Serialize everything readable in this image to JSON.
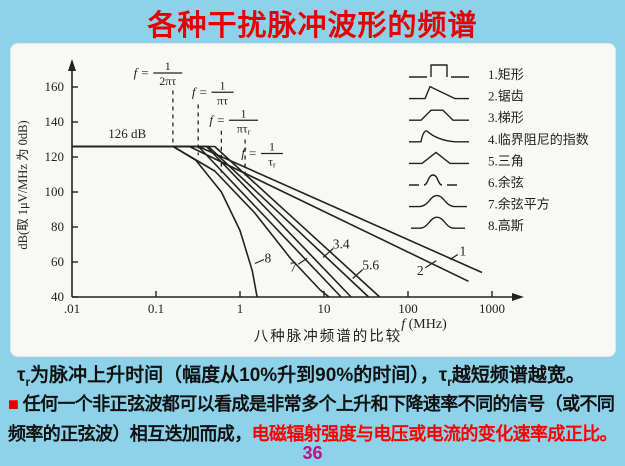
{
  "page": {
    "title": "各种干扰脉冲波形的频谱",
    "title_color": "#e60000",
    "background_color": "#8ed2e9",
    "page_number": "36",
    "page_number_color": "#c0108c"
  },
  "notes": {
    "line1": [
      {
        "t": "τ"
      },
      {
        "t": "r",
        "sub": true
      },
      {
        "t": "为脉冲上升时间（幅度从10%升到90%的时间），"
      },
      {
        "t": "τ"
      },
      {
        "t": "r",
        "sub": true
      },
      {
        "t": "越短频谱越宽。"
      }
    ],
    "line2": [
      {
        "t": "■ ",
        "color": "#e60000"
      },
      {
        "t": "任何一个非正弦波都可以看成是非常多个上升和下降速率不同的信号（或不同"
      }
    ],
    "line3": [
      {
        "t": "频率的正弦波）相互迭加而成，"
      },
      {
        "t": "电磁辐射强度与电压或电流的变化速率成正比。",
        "color": "#ff0000"
      }
    ]
  },
  "chart_data": {
    "type": "line",
    "caption": "八种脉冲频谱的比较",
    "xlabel_f": "f",
    "xlabel_unit": "(MHz)",
    "ylabel": "dB(取 1μV/MHz 为 0dB)",
    "x_scale": "log",
    "xlim": [
      0.01,
      1000
    ],
    "ylim": [
      40,
      160
    ],
    "x_ticks": [
      {
        "v": 0.01,
        "label": ".01"
      },
      {
        "v": 0.1,
        "label": "0.1"
      },
      {
        "v": 1,
        "label": "1"
      },
      {
        "v": 10,
        "label": "10"
      },
      {
        "v": 100,
        "label": "100"
      },
      {
        "v": 1000,
        "label": "1000"
      }
    ],
    "y_ticks": [
      40,
      60,
      80,
      100,
      120,
      140,
      160
    ],
    "plateau": {
      "dB": 126,
      "label": "126 dB",
      "label_f": 0.027,
      "label_dB": 131
    },
    "break_markers": [
      {
        "f": 0.159,
        "dash_top_dB": 158,
        "dash_bottom_dB": 126,
        "num": "1",
        "den": "2πτ",
        "label_f": 0.138,
        "label_dB": 168
      },
      {
        "f": 0.318,
        "dash_top_dB": 150,
        "dash_bottom_dB": 121,
        "num": "1",
        "den": "πτ",
        "label_f": 0.62,
        "label_dB": 157
      },
      {
        "f": 0.6,
        "dash_top_dB": 135,
        "dash_bottom_dB": 111,
        "num": "1",
        "den": "πτ_r",
        "label_f": 1.1,
        "label_dB": 141
      },
      {
        "f": 1.15,
        "dash_top_dB": 130,
        "dash_bottom_dB": 107,
        "num": "1",
        "den": "τ_r",
        "label_f": 2.4,
        "label_dB": 122
      }
    ],
    "series": [
      {
        "id": 1,
        "name": "矩形",
        "points": [
          [
            0.01,
            126
          ],
          [
            0.32,
            126
          ],
          [
            760,
            54
          ]
        ]
      },
      {
        "id": 2,
        "name": "锯齿",
        "points": [
          [
            0.01,
            126
          ],
          [
            0.25,
            126
          ],
          [
            525,
            49
          ]
        ]
      },
      {
        "id": 3,
        "name": "梯形",
        "points": [
          [
            0.01,
            126
          ],
          [
            0.32,
            126
          ],
          [
            16,
            40
          ]
        ]
      },
      {
        "id": 4,
        "name": "临界阻尼的指数",
        "points": [
          [
            0.01,
            126
          ],
          [
            0.4,
            126
          ],
          [
            21,
            40
          ]
        ]
      },
      {
        "id": 5,
        "name": "三角",
        "points": [
          [
            0.01,
            126
          ],
          [
            0.42,
            126
          ],
          [
            34,
            40
          ]
        ]
      },
      {
        "id": 6,
        "name": "余弦",
        "points": [
          [
            0.01,
            126
          ],
          [
            0.5,
            126
          ],
          [
            46,
            40
          ]
        ]
      },
      {
        "id": 7,
        "name": "余弦平方",
        "points": [
          [
            0.01,
            126
          ],
          [
            0.16,
            126
          ],
          [
            0.5,
            112
          ],
          [
            1.5,
            88
          ],
          [
            4,
            62
          ],
          [
            9,
            44
          ],
          [
            11.5,
            40
          ]
        ]
      },
      {
        "id": 8,
        "name": "高斯",
        "points": [
          [
            0.01,
            126
          ],
          [
            0.16,
            126
          ],
          [
            0.3,
            118
          ],
          [
            0.6,
            100
          ],
          [
            1,
            78
          ],
          [
            1.4,
            55
          ],
          [
            1.6,
            40
          ]
        ]
      }
    ],
    "curve_labels": [
      {
        "text": "8",
        "f": 2.15,
        "dB": 62,
        "tick": [
          -4,
          1,
          -13,
          5
        ]
      },
      {
        "text": "7",
        "f": 4.3,
        "dB": 57,
        "tick": [
          5,
          -3,
          14,
          -9
        ]
      },
      {
        "text": "3.4",
        "f": 16,
        "dB": 70,
        "tick": [
          -8,
          4,
          -18,
          13
        ]
      },
      {
        "text": "5.6",
        "f": 36,
        "dB": 58,
        "tick": [
          -8,
          4,
          -18,
          13
        ]
      },
      {
        "text": "2",
        "f": 140,
        "dB": 55,
        "tick": [
          5,
          -3,
          16,
          -10
        ]
      },
      {
        "text": "1",
        "f": 450,
        "dB": 66,
        "tick": [
          -5,
          3,
          -13,
          8
        ]
      }
    ],
    "legend": [
      {
        "icon": "rect-pulse-icon",
        "label": "1.矩形"
      },
      {
        "icon": "sawtooth-icon",
        "label": "2.锯齿"
      },
      {
        "icon": "trapezoid-icon",
        "label": "3.梯形"
      },
      {
        "icon": "damped-exp-icon",
        "label": "4.临界阻尼的指数"
      },
      {
        "icon": "triangle-icon",
        "label": "5.三角"
      },
      {
        "icon": "cosine-icon",
        "label": "6.余弦"
      },
      {
        "icon": "cosine-squared-icon",
        "label": "7.余弦平方"
      },
      {
        "icon": "gaussian-icon",
        "label": "8.高斯"
      }
    ]
  }
}
